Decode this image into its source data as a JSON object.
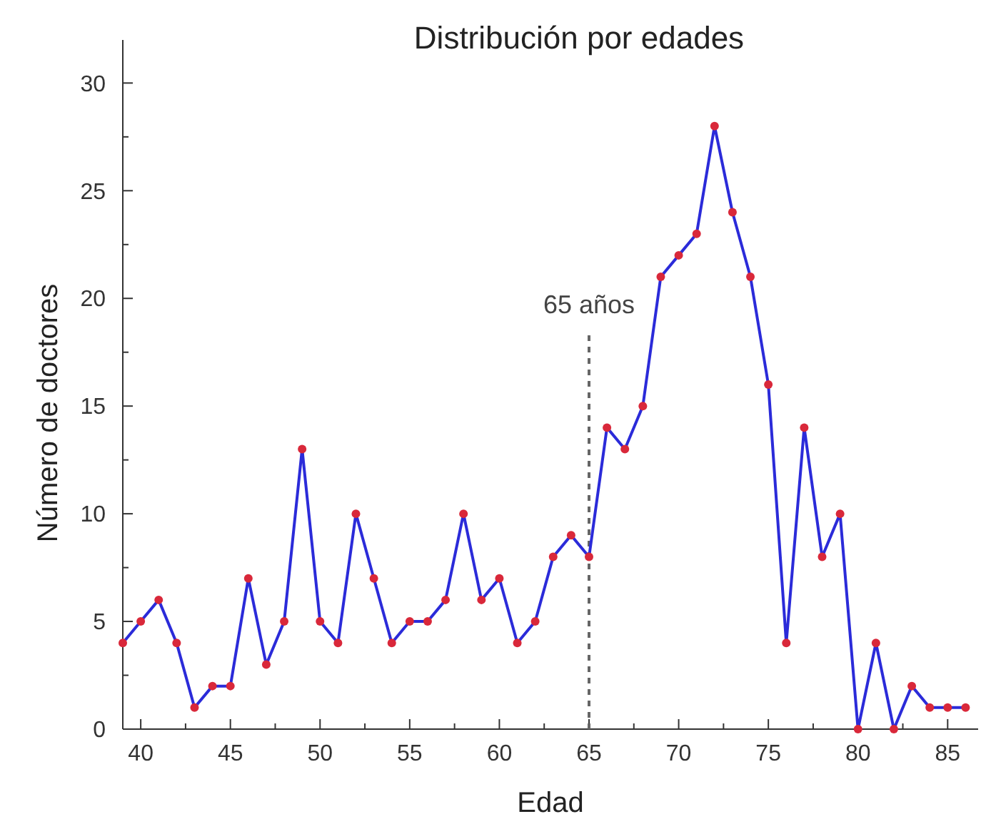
{
  "chart_data": {
    "type": "line",
    "title": "Distribución por edades",
    "xlabel": "Edad",
    "ylabel": "Número de doctores",
    "x": [
      39,
      40,
      41,
      42,
      43,
      44,
      45,
      46,
      47,
      48,
      49,
      50,
      51,
      52,
      53,
      54,
      55,
      56,
      57,
      58,
      59,
      60,
      61,
      62,
      63,
      64,
      65,
      66,
      67,
      68,
      69,
      70,
      71,
      72,
      73,
      74,
      75,
      76,
      77,
      78,
      79,
      80,
      81,
      82,
      83,
      84,
      85,
      86
    ],
    "series": [
      {
        "color": "#2b2bd9",
        "colors": [
          "#d9283a",
          "#d9283a",
          "#d9283a",
          "#d9283a",
          "#d9283a",
          "#d9283a",
          "#d9283a",
          "#d9283a",
          "#d9283a",
          "#d9283a",
          "#d9283a",
          "#d9283a",
          "#d9283a",
          "#d9283a",
          "#d9283a",
          "#d9283a",
          "#d9283a",
          "#d9283a",
          "#d9283a",
          "#d9283a",
          "#d9283a",
          "#d9283a",
          "#d9283a",
          "#d9283a",
          "#d9283a",
          "#d9283a",
          "#d9283a",
          "#d9283a",
          "#d9283a",
          "#d9283a",
          "#d9283a",
          "#d9283a",
          "#d9283a",
          "#d9283a",
          "#d9283a",
          "#d9283a",
          "#d9283a",
          "#d9283a",
          "#d9283a",
          "#d9283a",
          "#d9283a",
          "#d9283a",
          "#d9283a",
          "#d9283a",
          "#d9283a",
          "#d9283a",
          "#d9283a",
          "#d9283a"
        ],
        "values": [
          4,
          5,
          6,
          4,
          1,
          2,
          2,
          7,
          3,
          5,
          13,
          5,
          4,
          10,
          7,
          4,
          5,
          5,
          6,
          10,
          6,
          7,
          4,
          5,
          8,
          9,
          8,
          14,
          13,
          15,
          21,
          22,
          23,
          28,
          24,
          21,
          16,
          4,
          14,
          8,
          10,
          0,
          4,
          0,
          2,
          1,
          1,
          1
        ]
      }
    ],
    "marker": "circle",
    "line_style": "solid",
    "grid": false,
    "xlim": [
      39,
      86.7
    ],
    "xticks": [
      40,
      {
        "value": 42.5,
        "label": null
      },
      45,
      {
        "value": 47.5,
        "label": null
      },
      50,
      {
        "value": 52.5,
        "label": null
      },
      55,
      {
        "value": 57.5,
        "label": null
      },
      60,
      {
        "value": 62.5,
        "label": null
      },
      65,
      {
        "value": 67.5,
        "label": null
      },
      70,
      {
        "value": 72.5,
        "label": null
      },
      75,
      {
        "value": 77.5,
        "label": null
      },
      80,
      {
        "value": 82.5,
        "label": null
      },
      85
    ],
    "ylim": [
      0,
      32
    ],
    "yticks": [
      0,
      {
        "value": 2.5,
        "label": null
      },
      5,
      {
        "value": 7.5,
        "label": null
      },
      10,
      {
        "value": 12.5,
        "label": null
      },
      15,
      {
        "value": 17.5,
        "label": null
      },
      20,
      {
        "value": 22.5,
        "label": null
      },
      25,
      {
        "value": 27.5,
        "label": null
      },
      30
    ],
    "ref_lines": [
      {
        "axis": "x",
        "value": 65,
        "label": "65 años",
        "color": "#666666",
        "line_style": "dashed"
      }
    ]
  }
}
